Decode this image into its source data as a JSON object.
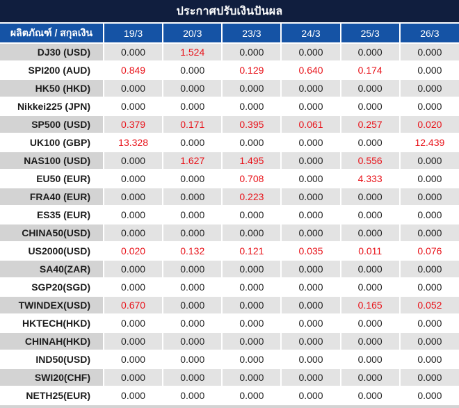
{
  "title": "ประกาศปรับเงินปันผล",
  "header": {
    "product_column": "ผลิตภัณฑ์ / สกุลเงิน",
    "dates": [
      "19/3",
      "20/3",
      "23/3",
      "24/3",
      "25/3",
      "26/3"
    ]
  },
  "colors": {
    "title_bg": "#101e3e",
    "header_bg": "#1553a5",
    "stripe_product_bg": "#d3d3d3",
    "stripe_value_bg": "#e3e3e3",
    "highlight_red": "#e81219",
    "text_dark": "#212121"
  },
  "table": {
    "rows": [
      {
        "product": "DJ30 (USD)",
        "values": [
          "0.000",
          "1.524",
          "0.000",
          "0.000",
          "0.000",
          "0.000"
        ],
        "red": [
          false,
          true,
          false,
          false,
          false,
          false
        ]
      },
      {
        "product": "SPI200 (AUD)",
        "values": [
          "0.849",
          "0.000",
          "0.129",
          "0.640",
          "0.174",
          "0.000"
        ],
        "red": [
          true,
          false,
          true,
          true,
          true,
          false
        ]
      },
      {
        "product": "HK50 (HKD)",
        "values": [
          "0.000",
          "0.000",
          "0.000",
          "0.000",
          "0.000",
          "0.000"
        ],
        "red": [
          false,
          false,
          false,
          false,
          false,
          false
        ]
      },
      {
        "product": "Nikkei225 (JPN)",
        "values": [
          "0.000",
          "0.000",
          "0.000",
          "0.000",
          "0.000",
          "0.000"
        ],
        "red": [
          false,
          false,
          false,
          false,
          false,
          false
        ]
      },
      {
        "product": "SP500 (USD)",
        "values": [
          "0.379",
          "0.171",
          "0.395",
          "0.061",
          "0.257",
          "0.020"
        ],
        "red": [
          true,
          true,
          true,
          true,
          true,
          true
        ]
      },
      {
        "product": "UK100 (GBP)",
        "values": [
          "13.328",
          "0.000",
          "0.000",
          "0.000",
          "0.000",
          "12.439"
        ],
        "red": [
          true,
          false,
          false,
          false,
          false,
          true
        ]
      },
      {
        "product": "NAS100 (USD)",
        "values": [
          "0.000",
          "1.627",
          "1.495",
          "0.000",
          "0.556",
          "0.000"
        ],
        "red": [
          false,
          true,
          true,
          false,
          true,
          false
        ]
      },
      {
        "product": "EU50 (EUR)",
        "values": [
          "0.000",
          "0.000",
          "0.708",
          "0.000",
          "4.333",
          "0.000"
        ],
        "red": [
          false,
          false,
          true,
          false,
          true,
          false
        ]
      },
      {
        "product": "FRA40 (EUR)",
        "values": [
          "0.000",
          "0.000",
          "0.223",
          "0.000",
          "0.000",
          "0.000"
        ],
        "red": [
          false,
          false,
          true,
          false,
          false,
          false
        ]
      },
      {
        "product": "ES35 (EUR)",
        "values": [
          "0.000",
          "0.000",
          "0.000",
          "0.000",
          "0.000",
          "0.000"
        ],
        "red": [
          false,
          false,
          false,
          false,
          false,
          false
        ]
      },
      {
        "product": "CHINA50(USD)",
        "values": [
          "0.000",
          "0.000",
          "0.000",
          "0.000",
          "0.000",
          "0.000"
        ],
        "red": [
          false,
          false,
          false,
          false,
          false,
          false
        ]
      },
      {
        "product": "US2000(USD)",
        "values": [
          "0.020",
          "0.132",
          "0.121",
          "0.035",
          "0.011",
          "0.076"
        ],
        "red": [
          true,
          true,
          true,
          true,
          true,
          true
        ]
      },
      {
        "product": "SA40(ZAR)",
        "values": [
          "0.000",
          "0.000",
          "0.000",
          "0.000",
          "0.000",
          "0.000"
        ],
        "red": [
          false,
          false,
          false,
          false,
          false,
          false
        ]
      },
      {
        "product": "SGP20(SGD)",
        "values": [
          "0.000",
          "0.000",
          "0.000",
          "0.000",
          "0.000",
          "0.000"
        ],
        "red": [
          false,
          false,
          false,
          false,
          false,
          false
        ]
      },
      {
        "product": "TWINDEX(USD)",
        "values": [
          "0.670",
          "0.000",
          "0.000",
          "0.000",
          "0.165",
          "0.052"
        ],
        "red": [
          true,
          false,
          false,
          false,
          true,
          true
        ]
      },
      {
        "product": "HKTECH(HKD)",
        "values": [
          "0.000",
          "0.000",
          "0.000",
          "0.000",
          "0.000",
          "0.000"
        ],
        "red": [
          false,
          false,
          false,
          false,
          false,
          false
        ]
      },
      {
        "product": "CHINAH(HKD)",
        "values": [
          "0.000",
          "0.000",
          "0.000",
          "0.000",
          "0.000",
          "0.000"
        ],
        "red": [
          false,
          false,
          false,
          false,
          false,
          false
        ]
      },
      {
        "product": "IND50(USD)",
        "values": [
          "0.000",
          "0.000",
          "0.000",
          "0.000",
          "0.000",
          "0.000"
        ],
        "red": [
          false,
          false,
          false,
          false,
          false,
          false
        ]
      },
      {
        "product": "SWI20(CHF)",
        "values": [
          "0.000",
          "0.000",
          "0.000",
          "0.000",
          "0.000",
          "0.000"
        ],
        "red": [
          false,
          false,
          false,
          false,
          false,
          false
        ]
      },
      {
        "product": "NETH25(EUR)",
        "values": [
          "0.000",
          "0.000",
          "0.000",
          "0.000",
          "0.000",
          "0.000"
        ],
        "red": [
          false,
          false,
          false,
          false,
          false,
          false
        ]
      }
    ]
  }
}
